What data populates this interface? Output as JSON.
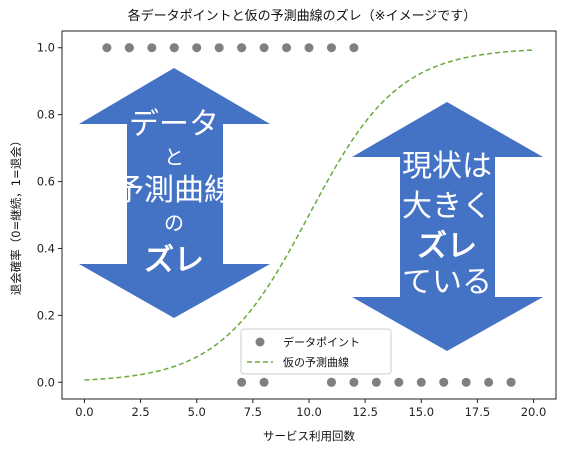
{
  "chart_data": {
    "type": "scatter",
    "title": "各データポイントと仮の予測曲線のズレ（※イメージです）",
    "xlabel": "サービス利用回数",
    "ylabel": "退会確率（0=継続，1=退会）",
    "xlim": [
      -1.0,
      21.0
    ],
    "ylim": [
      -0.05,
      1.05
    ],
    "xticks": [
      0.0,
      2.5,
      5.0,
      7.5,
      10.0,
      12.5,
      15.0,
      17.5,
      20.0
    ],
    "xtick_labels": [
      "0.0",
      "2.5",
      "5.0",
      "7.5",
      "10.0",
      "12.5",
      "15.0",
      "17.5",
      "20.0"
    ],
    "yticks": [
      0.0,
      0.2,
      0.4,
      0.6,
      0.8,
      1.0
    ],
    "ytick_labels": [
      "0.0",
      "0.2",
      "0.4",
      "0.6",
      "0.8",
      "1.0"
    ],
    "grid": false,
    "legend_position": "bottom-center",
    "series": [
      {
        "name": "データポイント",
        "kind": "scatter",
        "color": "#808080",
        "points": [
          [
            1,
            1
          ],
          [
            2,
            1
          ],
          [
            2,
            1
          ],
          [
            3,
            1
          ],
          [
            4,
            1
          ],
          [
            4,
            1
          ],
          [
            5,
            1
          ],
          [
            6,
            1
          ],
          [
            7,
            1
          ],
          [
            7,
            1
          ],
          [
            8,
            1
          ],
          [
            9,
            1
          ],
          [
            10,
            1
          ],
          [
            11,
            1
          ],
          [
            12,
            1
          ],
          [
            7,
            0
          ],
          [
            8,
            0
          ],
          [
            11,
            0
          ],
          [
            11,
            0
          ],
          [
            12,
            0
          ],
          [
            13,
            0
          ],
          [
            14,
            0
          ],
          [
            15,
            0
          ],
          [
            16,
            0
          ],
          [
            17,
            0
          ],
          [
            18,
            0
          ],
          [
            19,
            0
          ],
          [
            19,
            0
          ]
        ]
      },
      {
        "name": "仮の予測曲線",
        "kind": "line",
        "style": "dashed",
        "color": "#6aaa3c",
        "curve": "logistic",
        "midpoint": 10,
        "steepness": 0.5,
        "x_range": [
          0,
          20
        ]
      }
    ],
    "annotations": [
      {
        "shape": "double-arrow-vertical",
        "color": "#4472c4",
        "lines": [
          "データ",
          "と",
          "予測曲線",
          "の",
          "ズレ"
        ]
      },
      {
        "shape": "double-arrow-vertical",
        "color": "#4472c4",
        "lines": [
          "現状は",
          "大きく",
          "ズレ",
          "ている"
        ]
      }
    ]
  }
}
